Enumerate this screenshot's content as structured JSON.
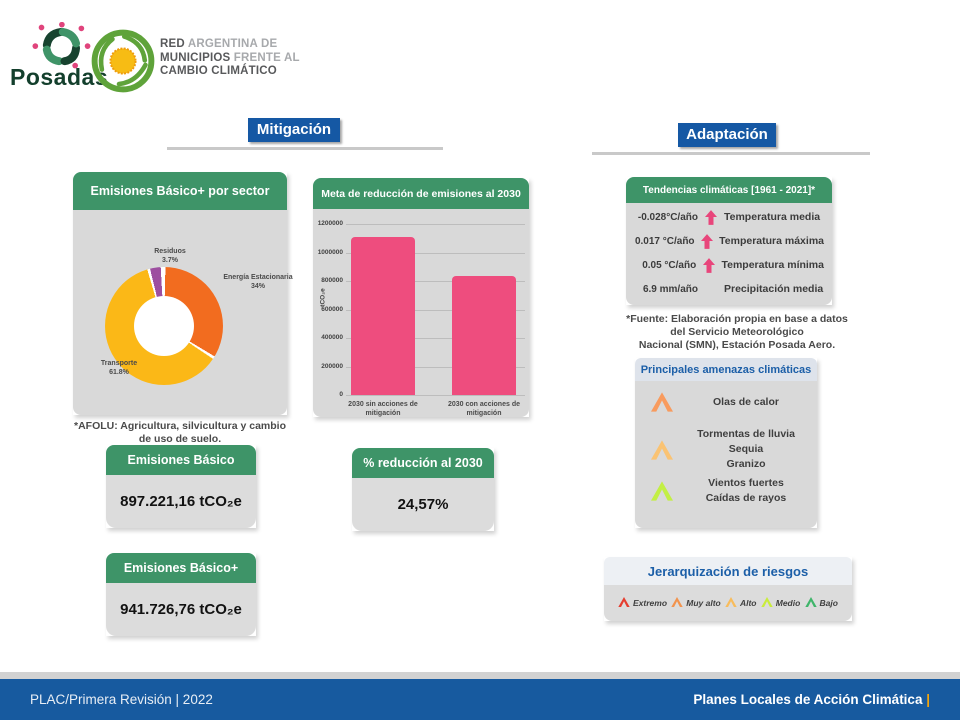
{
  "colors": {
    "green_header": "#3E9468",
    "blue_badge": "#1558A4",
    "blue_text": "#1C5FA8",
    "trend_arrow": "#E8457B",
    "footer_blue": "#175A9F",
    "footer_pipe_yellow": "#F2A50C"
  },
  "header": {
    "city": "Posadas",
    "network": {
      "line1_bold": "RED",
      "line1_rest": " ARGENTINA DE",
      "line2_bold": "MUNICIPIOS",
      "line2_rest": " FRENTE AL",
      "line3_bold": "CAMBIO CLIMÁTICO",
      "line3_rest": ""
    }
  },
  "mitigacion": {
    "section_title": "Mitigación",
    "donut_card_title": "Emisiones Básico+ por sector",
    "afolu_note": "*AFOLU: Agricultura, silvicultura y cambio\nde uso de suelo.",
    "bar_card_title": "Meta de reducción de emisiones al 2030",
    "stats": {
      "basico": {
        "title": "Emisiones Básico",
        "value": "897.221,16 tCO₂e"
      },
      "reduccion": {
        "title": "% reducción al 2030",
        "value": "24,57%"
      },
      "basico_plus": {
        "title": "Emisiones Básico+",
        "value": "941.726,76 tCO₂e"
      }
    }
  },
  "adaptacion": {
    "section_title": "Adaptación",
    "tendencias": {
      "title": "Tendencias climáticas  [1961 - 2021]*",
      "rows": [
        {
          "value": "-0.028°C/año",
          "arrow": true,
          "label": "Temperatura media"
        },
        {
          "value": "0.017 °C/año",
          "arrow": true,
          "label": "Temperatura máxima"
        },
        {
          "value": "0.05 °C/año",
          "arrow": true,
          "label": "Temperatura mínima"
        },
        {
          "value": "6.9 mm/año",
          "arrow": false,
          "label": "Precipitación media"
        }
      ],
      "fuente": "*Fuente: Elaboración propia en base a datos\ndel Servicio Meteorológico\nNacional (SMN), Estación Posada Aero."
    },
    "amenazas": {
      "title": "Principales amenazas climáticas",
      "groups": [
        {
          "chevron_color": "#F89B5E",
          "items": [
            "Olas de calor"
          ]
        },
        {
          "chevron_color": "#FAC373",
          "items": [
            "Tormentas de lluvia",
            "Sequia",
            "Granizo"
          ]
        },
        {
          "chevron_color": "#C3EF45",
          "items": [
            "Vientos fuertes",
            "Caídas de rayos"
          ]
        }
      ]
    },
    "riesgos": {
      "title": "Jerarquización de riesgos",
      "legend": [
        {
          "label": "Extremo",
          "color": "#E53E30"
        },
        {
          "label": "Muy alto",
          "color": "#F2934D"
        },
        {
          "label": "Alto",
          "color": "#F8BC5C"
        },
        {
          "label": "Medio",
          "color": "#C9EC3B"
        },
        {
          "label": "Bajo",
          "color": "#3FB56A"
        }
      ]
    }
  },
  "footer": {
    "left": "PLAC/Primera Revisión  | 2022",
    "right": "Planes Locales de Acción Climática",
    "right_pipe": "|"
  },
  "chart_data": [
    {
      "type": "pie",
      "donut": true,
      "title": "Emisiones Básico+ por sector",
      "labels": [
        "Energía Estacionaria",
        "Transporte",
        "Residuos"
      ],
      "values": [
        34,
        61.8,
        3.7
      ],
      "unit": "%",
      "colors": [
        "#F26C1F",
        "#FBB817",
        "#9D4FA0"
      ],
      "legend_position": "around-slices"
    },
    {
      "type": "bar",
      "title": "Meta de reducción de emisiones al 2030",
      "categories": [
        "2030 sin acciones de\nmitigación",
        "2030 con acciones de\nmitigación"
      ],
      "values": [
        1110000,
        835000
      ],
      "xlabel": "",
      "ylabel": "tCO₂e",
      "ylim": [
        0,
        1200000
      ],
      "yticks": [
        0,
        200000,
        400000,
        600000,
        800000,
        1000000,
        1200000
      ],
      "bar_color": "#EE4D7E",
      "grid": true
    }
  ]
}
